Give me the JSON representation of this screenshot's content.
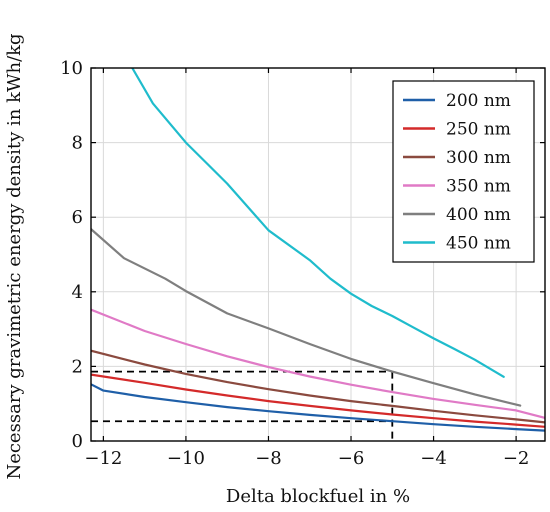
{
  "chart_data": {
    "type": "line",
    "title": "",
    "xlabel": "Delta blockfuel in %",
    "ylabel": "Necessary gravimetric energy density in kWh/kg",
    "xlim": [
      -12.3,
      -1.3
    ],
    "ylim": [
      0,
      10
    ],
    "xticks": [
      -12,
      -10,
      -8,
      -6,
      -4,
      -2
    ],
    "xtick_labels": [
      "−12",
      "−10",
      "−8",
      "−6",
      "−4",
      "−2"
    ],
    "yticks": [
      0,
      2,
      4,
      6,
      8,
      10
    ],
    "ytick_labels": [
      "0",
      "2",
      "4",
      "6",
      "8",
      "10"
    ],
    "grid": true,
    "legend_position": "top-right",
    "series": [
      {
        "name": "200 nm",
        "color": "#1f5fa8",
        "x": [
          -12.3,
          -12.0,
          -11.0,
          -10.0,
          -9.0,
          -8.0,
          -7.0,
          -6.0,
          -5.0,
          -4.0,
          -3.0,
          -2.0,
          -1.3
        ],
        "y": [
          1.52,
          1.35,
          1.18,
          1.04,
          0.91,
          0.8,
          0.7,
          0.61,
          0.53,
          0.45,
          0.38,
          0.32,
          0.28
        ]
      },
      {
        "name": "250 nm",
        "color": "#d42a2a",
        "x": [
          -12.3,
          -11.0,
          -10.0,
          -9.0,
          -8.0,
          -7.0,
          -6.0,
          -5.0,
          -4.0,
          -3.0,
          -2.0,
          -1.3
        ],
        "y": [
          1.78,
          1.56,
          1.38,
          1.22,
          1.07,
          0.94,
          0.82,
          0.71,
          0.61,
          0.52,
          0.44,
          0.38
        ]
      },
      {
        "name": "300 nm",
        "color": "#8b4a3f",
        "x": [
          -12.3,
          -11.0,
          -10.0,
          -9.0,
          -8.0,
          -7.0,
          -6.0,
          -5.0,
          -4.0,
          -3.0,
          -2.0,
          -1.3
        ],
        "y": [
          2.42,
          2.05,
          1.8,
          1.58,
          1.39,
          1.22,
          1.07,
          0.94,
          0.81,
          0.69,
          0.58,
          0.5
        ]
      },
      {
        "name": "350 nm",
        "color": "#e07ac6",
        "x": [
          -12.3,
          -11.0,
          -10.0,
          -9.0,
          -8.0,
          -7.0,
          -6.0,
          -5.0,
          -4.0,
          -3.0,
          -2.0,
          -1.3
        ],
        "y": [
          3.52,
          2.95,
          2.6,
          2.27,
          1.98,
          1.73,
          1.51,
          1.31,
          1.13,
          0.97,
          0.82,
          0.62
        ]
      },
      {
        "name": "400 nm",
        "color": "#7f7f7f",
        "x": [
          -12.3,
          -11.5,
          -10.5,
          -10.0,
          -9.0,
          -8.0,
          -7.0,
          -6.0,
          -5.0,
          -4.0,
          -3.0,
          -1.9
        ],
        "y": [
          5.68,
          4.9,
          4.35,
          4.02,
          3.42,
          3.02,
          2.6,
          2.2,
          1.86,
          1.55,
          1.25,
          0.95
        ]
      },
      {
        "name": "450 nm",
        "color": "#1fbccc",
        "x": [
          -11.3,
          -10.8,
          -10.0,
          -9.5,
          -9.0,
          -8.0,
          -7.0,
          -6.5,
          -6.0,
          -5.5,
          -5.0,
          -4.5,
          -4.0,
          -3.5,
          -3.0,
          -2.3
        ],
        "y": [
          10.0,
          9.05,
          8.0,
          7.45,
          6.9,
          5.65,
          4.85,
          4.35,
          3.95,
          3.62,
          3.35,
          3.05,
          2.75,
          2.47,
          2.18,
          1.72
        ]
      }
    ],
    "annotations": [
      {
        "type": "dashed-box",
        "color": "#000000",
        "x": [
          -12.3,
          -5.0
        ],
        "y": [
          0.53,
          1.86
        ]
      }
    ]
  }
}
